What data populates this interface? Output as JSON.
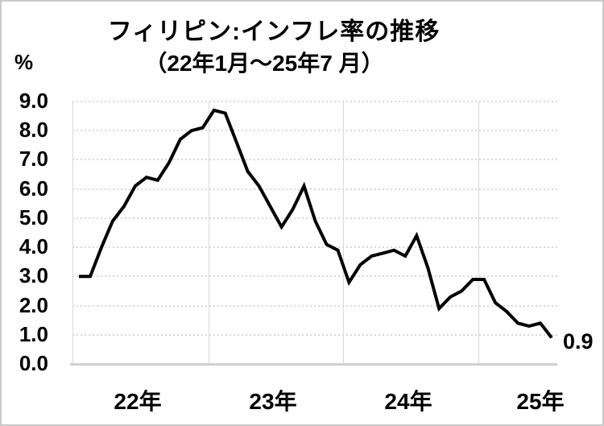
{
  "title": "フィリピン:インフレ率の推移",
  "subtitle": "（22年1月～25年7 月）",
  "y_axis_unit": "%",
  "end_label": "0.9",
  "colors": {
    "line": "#000000",
    "gridline": "#d9d9d9",
    "axis": "#d0d0d0",
    "frame": "#c9c9c9",
    "text": "#000000",
    "background": "#ffffff"
  },
  "chart_data": {
    "type": "line",
    "title": "フィリピン:インフレ率の推移",
    "subtitle": "（22年1月～25年7 月）",
    "ylabel": "%",
    "ylim": [
      0.0,
      9.0
    ],
    "y_tick_step": 1.0,
    "y_tick_labels": [
      "9.0",
      "8.0",
      "7.0",
      "6.0",
      "5.0",
      "4.0",
      "3.0",
      "2.0",
      "1.0",
      "0.0"
    ],
    "x_tick_labels": [
      "22年",
      "23年",
      "24年",
      "25年"
    ],
    "grid": "horizontal-dotted, vertical year separators",
    "legend": "none",
    "annotation_last_value": "0.9",
    "x": [
      "2022-01",
      "2022-02",
      "2022-03",
      "2022-04",
      "2022-05",
      "2022-06",
      "2022-07",
      "2022-08",
      "2022-09",
      "2022-10",
      "2022-11",
      "2022-12",
      "2023-01",
      "2023-02",
      "2023-03",
      "2023-04",
      "2023-05",
      "2023-06",
      "2023-07",
      "2023-08",
      "2023-09",
      "2023-10",
      "2023-11",
      "2023-12",
      "2024-01",
      "2024-02",
      "2024-03",
      "2024-04",
      "2024-05",
      "2024-06",
      "2024-07",
      "2024-08",
      "2024-09",
      "2024-10",
      "2024-11",
      "2024-12",
      "2025-01",
      "2025-02",
      "2025-03",
      "2025-04",
      "2025-05",
      "2025-06",
      "2025-07"
    ],
    "series": [
      {
        "name": "インフレ率",
        "values": [
          3.0,
          3.0,
          4.0,
          4.9,
          5.4,
          6.1,
          6.4,
          6.3,
          6.9,
          7.7,
          8.0,
          8.1,
          8.7,
          8.6,
          7.6,
          6.6,
          6.1,
          5.4,
          4.7,
          5.3,
          6.1,
          4.9,
          4.1,
          3.9,
          2.8,
          3.4,
          3.7,
          3.8,
          3.9,
          3.7,
          4.4,
          3.3,
          1.9,
          2.3,
          2.5,
          2.9,
          2.9,
          2.1,
          1.8,
          1.4,
          1.3,
          1.4,
          0.9
        ]
      }
    ]
  }
}
